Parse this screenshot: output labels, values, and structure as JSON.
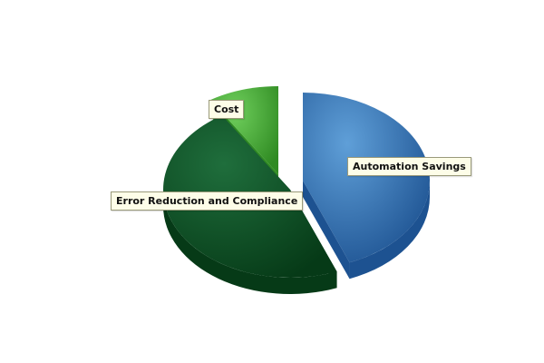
{
  "chart_data": {
    "type": "pie",
    "slices": [
      {
        "label": "Automation Savings",
        "value": 44,
        "color": "#5f9fd8",
        "dark": "#1d5291"
      },
      {
        "label": "Error Reduction and Compliance",
        "value": 47,
        "color": "#1f6e3c",
        "dark": "#063a17"
      },
      {
        "label": "Cost",
        "value": 9,
        "color": "#6fcf5c",
        "dark": "#2f8a22"
      }
    ]
  }
}
